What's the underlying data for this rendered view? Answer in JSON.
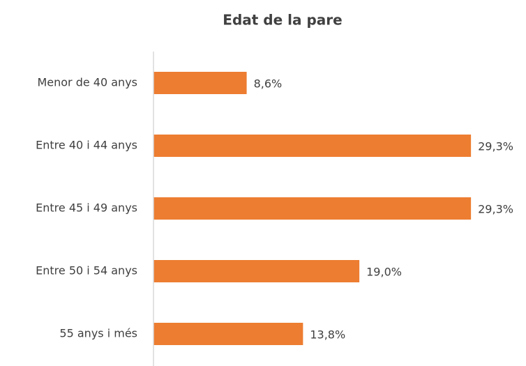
{
  "chart_data": {
    "type": "bar",
    "orientation": "horizontal",
    "title": "Edat de la pare",
    "categories": [
      "Menor de 40 anys",
      "Entre 40 i 44 anys",
      "Entre 45 i 49 anys",
      "Entre 50 i 54 anys",
      "55 anys i més"
    ],
    "values": [
      8.6,
      29.3,
      29.3,
      19.0,
      13.8
    ],
    "value_labels": [
      "8,6%",
      "29,3%",
      "29,3%",
      "19,0%",
      "13,8%"
    ],
    "color": "#ED7D31",
    "xlim": [
      0,
      30
    ]
  }
}
